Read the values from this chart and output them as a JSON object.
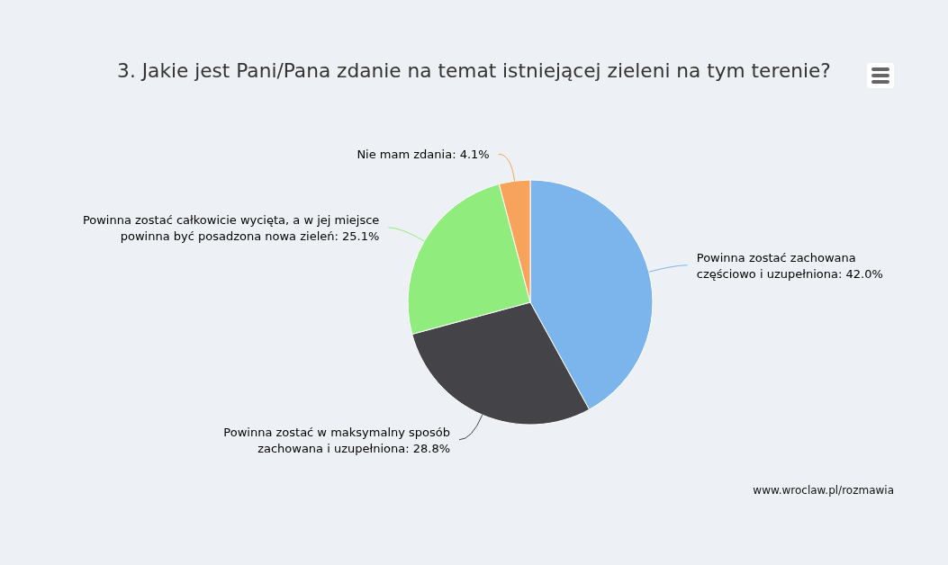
{
  "chart_data": {
    "type": "pie",
    "title": "3. Jakie jest Pani/Pana zdanie na temat istniejącej zieleni na tym terenie?",
    "categories": [
      "Powinna zostać zachowana częściowo i uzupełniona",
      "Powinna zostać w maksymalny sposób zachowana i uzupełniona",
      "Powinna zostać całkowicie wycięta, a w jej miejsce powinna być posadzona nowa zieleń",
      "Nie mam zdania"
    ],
    "values": [
      42.0,
      28.8,
      25.1,
      4.1
    ],
    "value_labels": [
      "42.0%",
      "28.8%",
      "25.1%",
      "4.1%"
    ],
    "colors": [
      "#7cb5ec",
      "#434348",
      "#90ed7d",
      "#f7a35c"
    ],
    "annotations": [
      "www.wroclaw.pl/rozmawia"
    ]
  }
}
